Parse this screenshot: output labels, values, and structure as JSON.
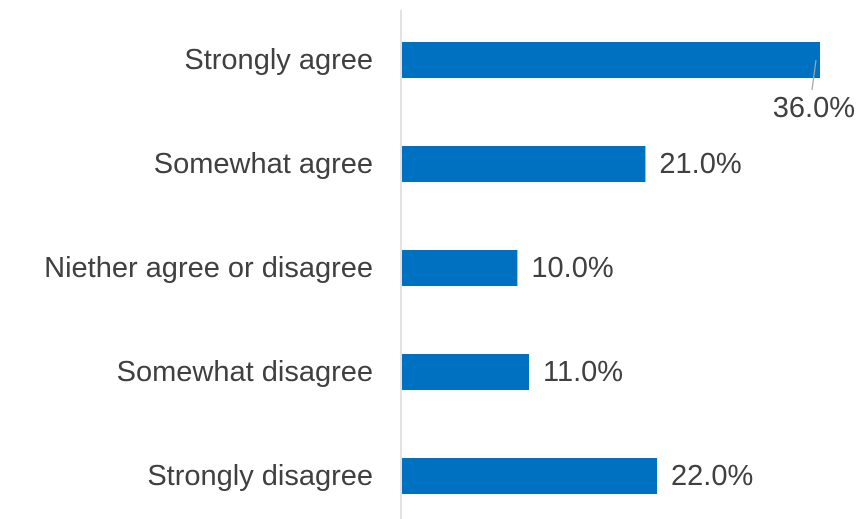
{
  "chart_data": {
    "type": "bar",
    "orientation": "horizontal",
    "title": "",
    "xlabel": "",
    "ylabel": "",
    "categories": [
      "Strongly agree",
      "Somewhat agree",
      "Niether agree or disagree",
      "Somewhat disagree",
      "Strongly disagree"
    ],
    "values": [
      36.0,
      21.0,
      10.0,
      11.0,
      22.0
    ],
    "data_labels": [
      "36.0%",
      "21.0%",
      "10.0%",
      "11.0%",
      "22.0%"
    ],
    "xlim": [
      0,
      36
    ],
    "grid": false,
    "legend": "none",
    "colors": {
      "bar": "#0070C0",
      "text": "#404040",
      "axis": "#D9D9D9",
      "leader": "#A6A6A6"
    }
  }
}
